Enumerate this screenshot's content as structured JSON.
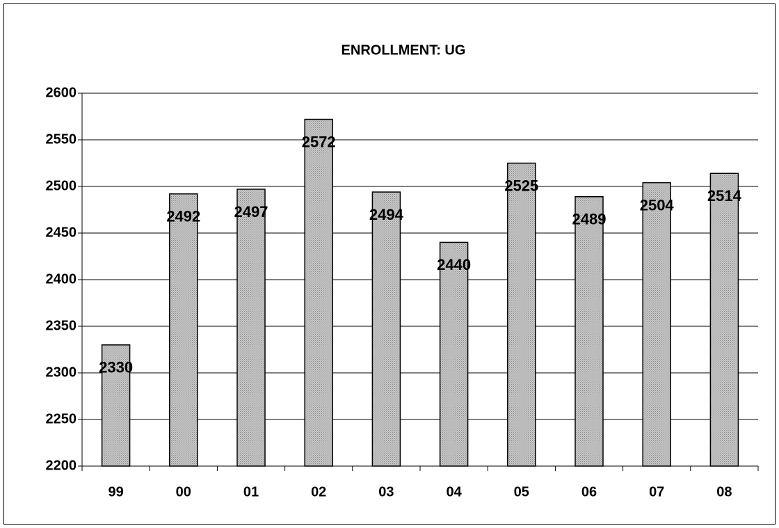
{
  "chart_data": {
    "type": "bar",
    "title": "ENROLLMENT: UG",
    "categories": [
      "99",
      "00",
      "01",
      "02",
      "03",
      "04",
      "05",
      "06",
      "07",
      "08"
    ],
    "values": [
      2330,
      2492,
      2497,
      2572,
      2494,
      2440,
      2525,
      2489,
      2504,
      2514
    ],
    "color": "#c8c8c8",
    "ylim": [
      2200,
      2600
    ],
    "yticks": [
      2200,
      2250,
      2300,
      2350,
      2400,
      2450,
      2500,
      2550,
      2600
    ],
    "grid": true
  }
}
